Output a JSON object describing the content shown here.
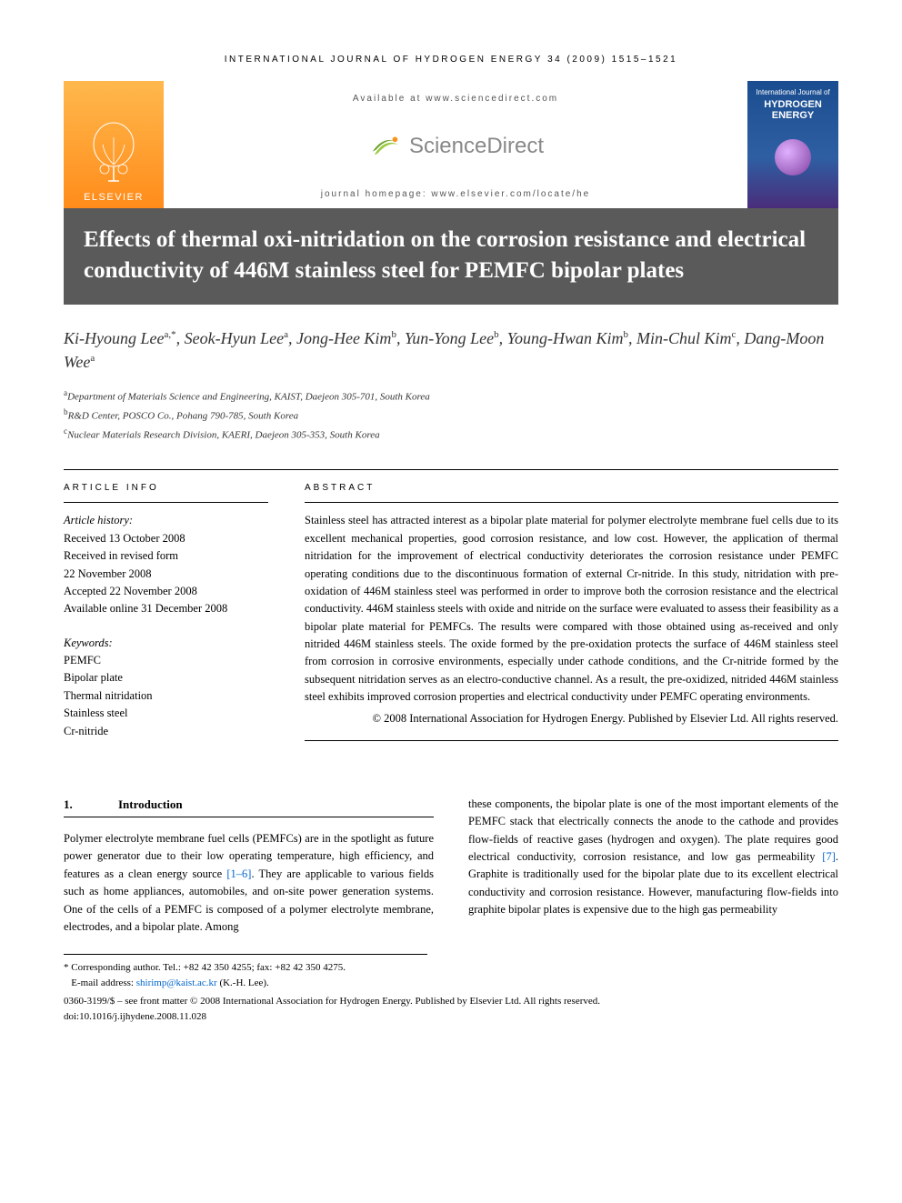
{
  "running_head": "INTERNATIONAL JOURNAL OF HYDROGEN ENERGY 34 (2009) 1515–1521",
  "header": {
    "elsevier": "ELSEVIER",
    "available_at": "Available at www.sciencedirect.com",
    "sciencedirect": "ScienceDirect",
    "homepage": "journal homepage: www.elsevier.com/locate/he",
    "cover_small": "International Journal of",
    "cover_main": "HYDROGEN ENERGY"
  },
  "title": "Effects of thermal oxi-nitridation on the corrosion resistance and electrical conductivity of 446M stainless steel for PEMFC bipolar plates",
  "authors_html": "Ki-Hyoung Lee<sup>a,*</sup>, Seok-Hyun Lee<sup>a</sup>, Jong-Hee Kim<sup>b</sup>, Yun-Yong Lee<sup>b</sup>, Young-Hwan Kim<sup>b</sup>, Min-Chul Kim<sup>c</sup>, Dang-Moon Wee<sup>a</sup>",
  "affiliations": [
    {
      "sup": "a",
      "text": "Department of Materials Science and Engineering, KAIST, Daejeon 305-701, South Korea"
    },
    {
      "sup": "b",
      "text": "R&D Center, POSCO Co., Pohang 790-785, South Korea"
    },
    {
      "sup": "c",
      "text": "Nuclear Materials Research Division, KAERI, Daejeon 305-353, South Korea"
    }
  ],
  "info": {
    "heading": "ARTICLE INFO",
    "history_label": "Article history:",
    "history": [
      "Received 13 October 2008",
      "Received in revised form",
      "22 November 2008",
      "Accepted 22 November 2008",
      "Available online 31 December 2008"
    ],
    "keywords_label": "Keywords:",
    "keywords": [
      "PEMFC",
      "Bipolar plate",
      "Thermal nitridation",
      "Stainless steel",
      "Cr-nitride"
    ]
  },
  "abstract": {
    "heading": "ABSTRACT",
    "text": "Stainless steel has attracted interest as a bipolar plate material for polymer electrolyte membrane fuel cells due to its excellent mechanical properties, good corrosion resistance, and low cost. However, the application of thermal nitridation for the improvement of electrical conductivity deteriorates the corrosion resistance under PEMFC operating conditions due to the discontinuous formation of external Cr-nitride. In this study, nitridation with pre-oxidation of 446M stainless steel was performed in order to improve both the corrosion resistance and the electrical conductivity. 446M stainless steels with oxide and nitride on the surface were evaluated to assess their feasibility as a bipolar plate material for PEMFCs. The results were compared with those obtained using as-received and only nitrided 446M stainless steels. The oxide formed by the pre-oxidation protects the surface of 446M stainless steel from corrosion in corrosive environments, especially under cathode conditions, and the Cr-nitride formed by the subsequent nitridation serves as an electro-conductive channel. As a result, the pre-oxidized, nitrided 446M stainless steel exhibits improved corrosion properties and electrical conductivity under PEMFC operating environments.",
    "copyright": "© 2008 International Association for Hydrogen Energy. Published by Elsevier Ltd. All rights reserved."
  },
  "body": {
    "section_num": "1.",
    "section_title": "Introduction",
    "col1": "Polymer electrolyte membrane fuel cells (PEMFCs) are in the spotlight as future power generator due to their low operating temperature, high efficiency, and features as a clean energy source ",
    "ref1": "[1–6]",
    "col1b": ". They are applicable to various fields such as home appliances, automobiles, and on-site power generation systems. One of the cells of a PEMFC is composed of a polymer electrolyte membrane, electrodes, and a bipolar plate. Among",
    "col2": "these components, the bipolar plate is one of the most important elements of the PEMFC stack that electrically connects the anode to the cathode and provides flow-fields of reactive gases (hydrogen and oxygen). The plate requires good electrical conductivity, corrosion resistance, and low gas permeability ",
    "ref2": "[7]",
    "col2b": ". Graphite is traditionally used for the bipolar plate due to its excellent electrical conductivity and corrosion resistance. However, manufacturing flow-fields into graphite bipolar plates is expensive due to the high gas permeability"
  },
  "footnotes": {
    "corr": "* Corresponding author. Tel.: +82 42 350 4255; fax: +82 42 350 4275.",
    "email_label": "E-mail address: ",
    "email": "shirimp@kaist.ac.kr",
    "email_suffix": " (K.-H. Lee).",
    "meta1": "0360-3199/$ – see front matter © 2008 International Association for Hydrogen Energy. Published by Elsevier Ltd. All rights reserved.",
    "meta2": "doi:10.1016/j.ijhydene.2008.11.028"
  },
  "colors": {
    "title_band_bg": "#5a5a5a",
    "elsevier_orange_top": "#ffb84d",
    "elsevier_orange_bottom": "#ff8c1a",
    "link_blue": "#0066cc",
    "cover_blue": "#1a4d8f"
  }
}
